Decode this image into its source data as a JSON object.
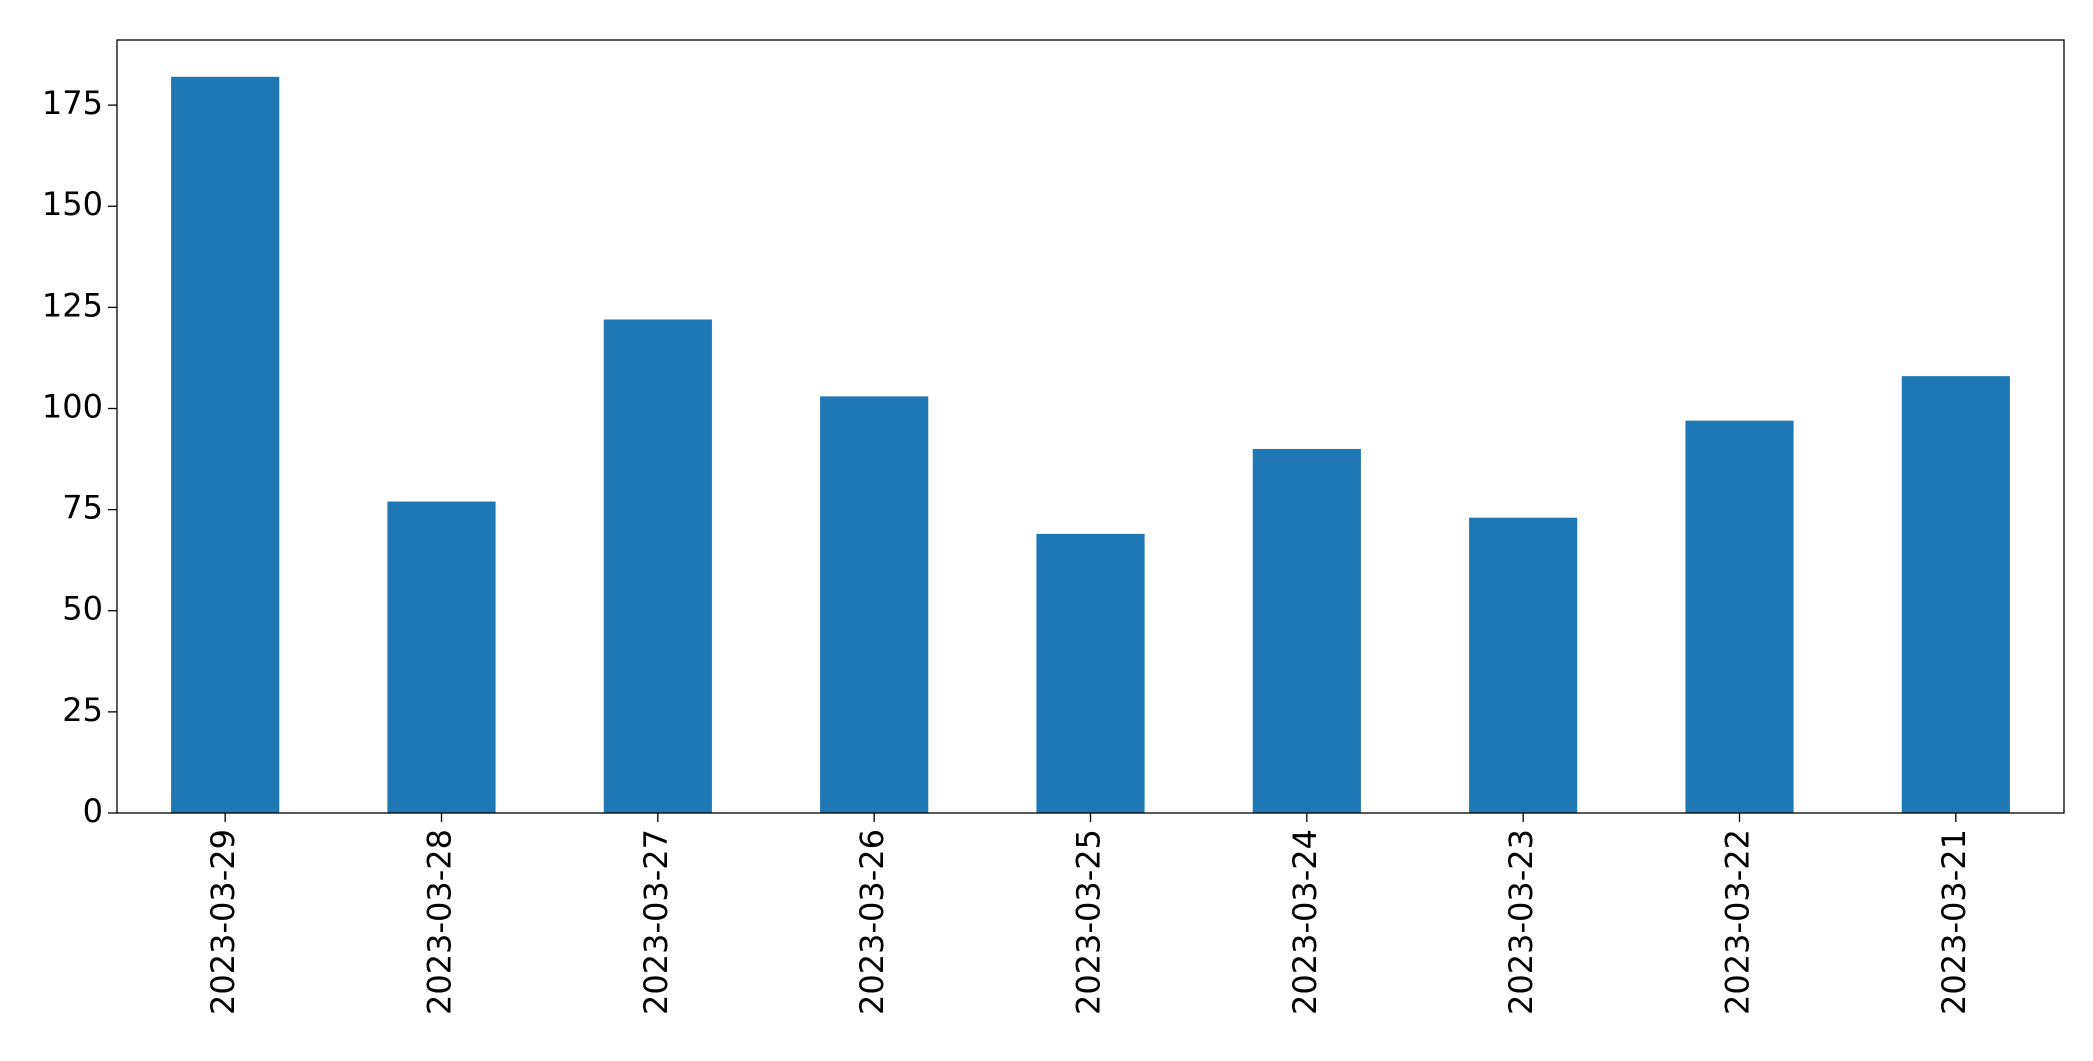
{
  "chart_data": {
    "type": "bar",
    "categories": [
      "2023-03-29",
      "2023-03-28",
      "2023-03-27",
      "2023-03-26",
      "2023-03-25",
      "2023-03-24",
      "2023-03-23",
      "2023-03-22",
      "2023-03-21"
    ],
    "values": [
      182,
      77,
      122,
      103,
      69,
      90,
      73,
      97,
      108
    ],
    "color": "#1f77b4",
    "ylim": [
      0,
      191.1
    ],
    "yticks": [
      0,
      25,
      50,
      75,
      100,
      125,
      150,
      175
    ],
    "grid": false
  }
}
